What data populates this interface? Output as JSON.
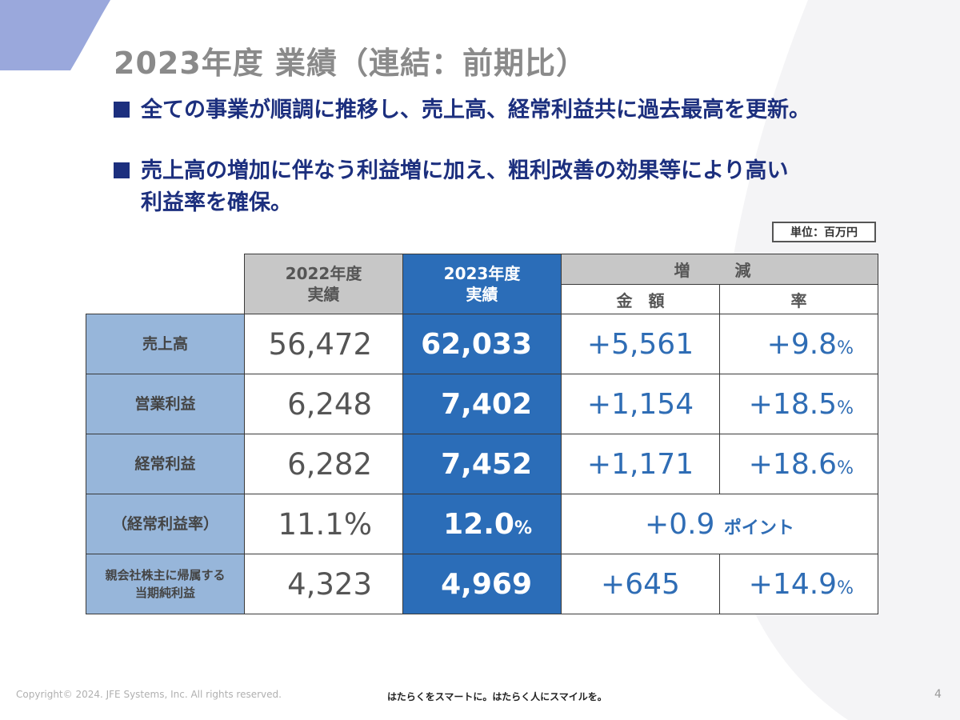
{
  "title": "2023年度 業績（連結：前期比）",
  "bullets": [
    {
      "lines": [
        "全ての事業が順調に推移し、売上高、経常利益共に過去最高を更新。"
      ]
    },
    {
      "lines": [
        "売上高の増加に伴なう利益増に加え、粗利改善の効果等により高い",
        "利益率を確保。"
      ]
    }
  ],
  "unit_label": "単位：百万円",
  "table": {
    "header": {
      "col_2022": [
        "2022年度",
        "実績"
      ],
      "col_2023": [
        "2023年度",
        "実績"
      ],
      "change": "増　減",
      "change_amount": "金　額",
      "change_rate": "率"
    },
    "rows": [
      {
        "label": [
          "売上高"
        ],
        "v2022": "56,472",
        "v2023": "62,033",
        "amount": "+5,561",
        "rate": "+9.8",
        "rate_unit": "%"
      },
      {
        "label": [
          "営業利益"
        ],
        "v2022": "6,248",
        "v2023": "7,402",
        "amount": "+1,154",
        "rate": "+18.5",
        "rate_unit": "%"
      },
      {
        "label": [
          "経常利益"
        ],
        "v2022": "6,282",
        "v2023": "7,452",
        "amount": "+1,171",
        "rate": "+18.6",
        "rate_unit": "%"
      },
      {
        "label": [
          "（経常利益率）"
        ],
        "v2022": "11.1%",
        "v2023": "12.0",
        "v2023_unit": "%",
        "merged_change": "+0.9",
        "merged_unit": "ポイント"
      },
      {
        "label": [
          "親会社株主に帰属する",
          "当期純利益"
        ],
        "v2022": "4,323",
        "v2023": "4,969",
        "amount": "+645",
        "rate": "+14.9",
        "rate_unit": "%"
      }
    ]
  },
  "footer": {
    "copyright": "Copyright© 2024. JFE Systems, Inc. All rights reserved.",
    "slogan": "はたらくをスマートに。はたらく人にスマイルを。",
    "page_number": "4"
  },
  "colors": {
    "accent_blue": "#2b6db8",
    "navy_text": "#1c2f7e",
    "label_blue": "#97b6da",
    "header_gray": "#c7c7c7"
  }
}
